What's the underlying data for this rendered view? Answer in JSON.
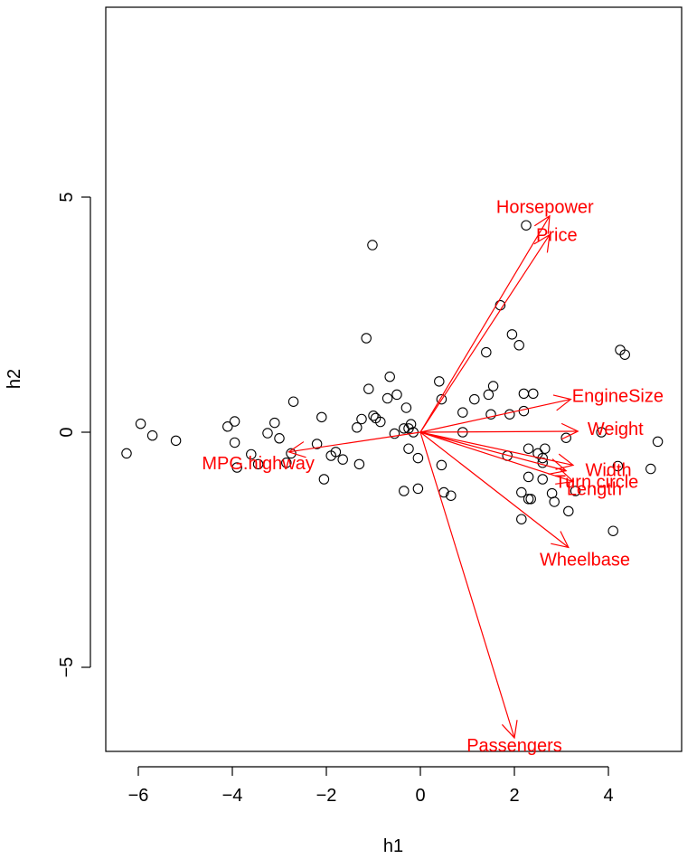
{
  "chart_data": {
    "type": "biplot",
    "title": "",
    "xlabel": "h1",
    "ylabel": "h2",
    "xlim": [
      -6.7,
      5.5
    ],
    "ylim": [
      -6.9,
      9.1
    ],
    "xticks": [
      -6,
      -4,
      -2,
      0,
      2,
      4
    ],
    "yticks": [
      -5,
      0,
      5
    ],
    "xtick_labels": [
      "−6",
      "−4",
      "−2",
      "0",
      "2",
      "4"
    ],
    "ytick_labels": [
      "−5",
      "0",
      "5"
    ],
    "colors": {
      "points": "#000000",
      "arrows": "#ff0000",
      "axes": "#000000"
    },
    "points": [
      [
        -6.25,
        -0.45
      ],
      [
        -5.95,
        0.18
      ],
      [
        -5.7,
        -0.07
      ],
      [
        -5.2,
        -0.18
      ],
      [
        -4.1,
        0.12
      ],
      [
        -3.95,
        0.23
      ],
      [
        -3.95,
        -0.22
      ],
      [
        -3.9,
        -0.75
      ],
      [
        -3.6,
        -0.47
      ],
      [
        -3.45,
        -0.68
      ],
      [
        -3.25,
        -0.02
      ],
      [
        -3.1,
        0.2
      ],
      [
        -3.0,
        -0.13
      ],
      [
        -2.85,
        -0.65
      ],
      [
        -2.75,
        -0.45
      ],
      [
        -2.7,
        0.65
      ],
      [
        -2.2,
        -0.25
      ],
      [
        -2.1,
        0.32
      ],
      [
        -2.05,
        -1.0
      ],
      [
        -1.9,
        -0.5
      ],
      [
        -1.8,
        -0.42
      ],
      [
        -1.65,
        -0.58
      ],
      [
        -1.35,
        0.1
      ],
      [
        -1.3,
        -0.68
      ],
      [
        -1.25,
        0.28
      ],
      [
        -1.1,
        0.92
      ],
      [
        -1.15,
        2.0
      ],
      [
        -1.02,
        3.98
      ],
      [
        -1.0,
        0.35
      ],
      [
        -0.95,
        0.3
      ],
      [
        -0.85,
        0.22
      ],
      [
        -0.7,
        0.72
      ],
      [
        -0.65,
        1.18
      ],
      [
        -0.5,
        0.8
      ],
      [
        -0.55,
        -0.03
      ],
      [
        -0.35,
        0.08
      ],
      [
        -0.3,
        0.52
      ],
      [
        -0.25,
        0.08
      ],
      [
        -0.2,
        0.17
      ],
      [
        -0.25,
        -0.35
      ],
      [
        -0.15,
        0.0
      ],
      [
        -0.05,
        -0.55
      ],
      [
        -0.35,
        -1.25
      ],
      [
        -0.05,
        -1.2
      ],
      [
        0.4,
        1.08
      ],
      [
        0.45,
        0.7
      ],
      [
        0.45,
        -0.7
      ],
      [
        0.5,
        -1.28
      ],
      [
        0.65,
        -1.35
      ],
      [
        0.9,
        0.42
      ],
      [
        0.9,
        0.0
      ],
      [
        1.15,
        0.7
      ],
      [
        1.4,
        1.7
      ],
      [
        1.45,
        0.8
      ],
      [
        1.5,
        0.38
      ],
      [
        1.55,
        0.98
      ],
      [
        1.7,
        2.7
      ],
      [
        1.85,
        -0.5
      ],
      [
        1.9,
        0.38
      ],
      [
        1.95,
        2.08
      ],
      [
        2.1,
        1.85
      ],
      [
        2.15,
        -1.28
      ],
      [
        2.15,
        -1.85
      ],
      [
        2.2,
        0.82
      ],
      [
        2.2,
        0.45
      ],
      [
        2.25,
        4.4
      ],
      [
        2.3,
        -0.35
      ],
      [
        2.3,
        -0.95
      ],
      [
        2.3,
        -1.42
      ],
      [
        2.35,
        -1.42
      ],
      [
        2.4,
        0.82
      ],
      [
        2.5,
        -0.45
      ],
      [
        2.6,
        -0.65
      ],
      [
        2.65,
        -0.35
      ],
      [
        2.6,
        -0.55
      ],
      [
        2.6,
        -1.0
      ],
      [
        2.8,
        -1.3
      ],
      [
        2.85,
        -1.48
      ],
      [
        3.1,
        -0.12
      ],
      [
        3.15,
        -1.68
      ],
      [
        3.3,
        -1.25
      ],
      [
        3.85,
        0.0
      ],
      [
        4.1,
        -2.1
      ],
      [
        4.2,
        -0.72
      ],
      [
        4.25,
        1.75
      ],
      [
        4.35,
        1.65
      ],
      [
        4.9,
        -0.78
      ],
      [
        5.05,
        -0.2
      ]
    ],
    "arrows": [
      {
        "label": "Horsepower",
        "end": [
          2.75,
          4.6
        ],
        "label_pos": [
          2.65,
          4.8
        ]
      },
      {
        "label": "Price",
        "end": [
          2.75,
          4.2
        ],
        "label_pos": [
          2.9,
          4.2
        ]
      },
      {
        "label": "EngineSize",
        "end": [
          3.2,
          0.7
        ],
        "label_pos": [
          4.2,
          0.78
        ]
      },
      {
        "label": "Weight",
        "end": [
          3.35,
          0.02
        ],
        "label_pos": [
          4.15,
          0.08
        ]
      },
      {
        "label": "Width",
        "end": [
          3.25,
          -0.7
        ],
        "label_pos": [
          4.0,
          -0.8
        ]
      },
      {
        "label": "Turn.circle",
        "end": [
          3.25,
          -1.05
        ],
        "label_pos": [
          3.75,
          -1.05
        ]
      },
      {
        "label": "Length",
        "end": [
          3.1,
          -0.82
        ],
        "label_pos": [
          3.7,
          -1.2
        ]
      },
      {
        "label": "Wheelbase",
        "end": [
          3.15,
          -2.45
        ],
        "label_pos": [
          3.5,
          -2.7
        ]
      },
      {
        "label": "Passengers",
        "end": [
          2.0,
          -6.5
        ],
        "label_pos": [
          2.0,
          -6.65
        ]
      },
      {
        "label": "MPG.highway",
        "end": [
          -2.8,
          -0.42
        ],
        "label_pos": [
          -3.45,
          -0.65
        ]
      }
    ]
  }
}
